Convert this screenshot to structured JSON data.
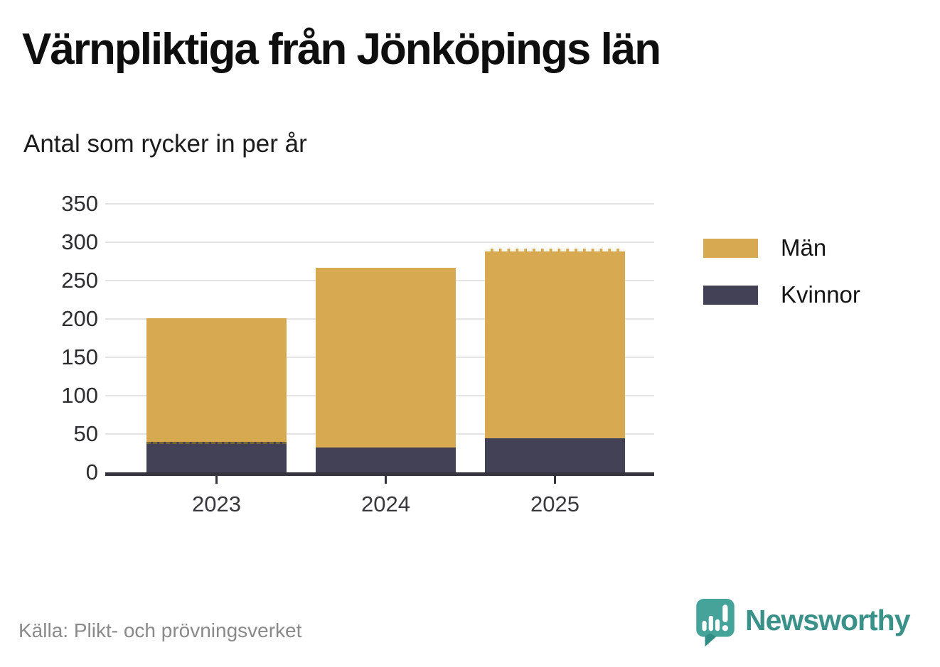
{
  "title": "Värnpliktiga från Jönköpings län",
  "subtitle": "Antal som rycker in per år",
  "source": "Källa: Plikt- och prövningsverket",
  "branding": {
    "name": "Newsworthy",
    "icon": "newsworthy-speech-bubble-bar-chart-icon",
    "text_color": "#3a9189",
    "icon_color": "#45a39a",
    "icon_tail_color": "#2f8d85"
  },
  "legend": [
    {
      "label": "Män",
      "color": "#d7a951"
    },
    {
      "label": "Kvinnor",
      "color": "#434156"
    }
  ],
  "colors": {
    "grid": "#e4e4e4",
    "axis": "#35333d",
    "men_bar": "#d7a951",
    "women_bar": "#434156"
  },
  "chart_data": {
    "type": "bar",
    "stacked": true,
    "title": "Värnpliktiga från Jönköpings län",
    "subtitle": "Antal som rycker in per år",
    "xlabel": "",
    "ylabel": "Antal som rycker in per år",
    "categories": [
      "2023",
      "2024",
      "2025"
    ],
    "series": [
      {
        "name": "Män",
        "color": "#d7a951",
        "values": [
          161,
          235,
          248
        ]
      },
      {
        "name": "Kvinnor",
        "color": "#434156",
        "values": [
          40,
          32,
          44
        ]
      }
    ],
    "stack_order_bottom_to_top": [
      "Kvinnor",
      "Män"
    ],
    "totals": [
      201,
      267,
      292
    ],
    "ylim": [
      0,
      350
    ],
    "y_ticks": [
      0,
      50,
      100,
      150,
      200,
      250,
      300,
      350
    ],
    "grid": "horizontal",
    "legend_position": "right",
    "dashed_segment_tops": [
      {
        "category": "2023",
        "series": "Kvinnor"
      },
      {
        "category": "2025",
        "series": "Män"
      }
    ]
  }
}
